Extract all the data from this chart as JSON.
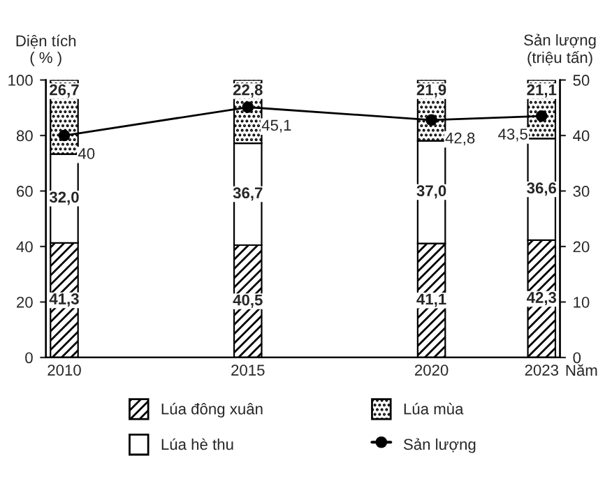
{
  "chart_data": {
    "type": "bar",
    "stacked": true,
    "x": [
      2010,
      2015,
      2020,
      2023
    ],
    "xlim": [
      2009.5,
      2023.5
    ],
    "xticks": [
      2010,
      2015,
      2020,
      2023
    ],
    "xlabel": "Năm",
    "ylabel": "Diện tích\n( % )",
    "y2label": "Sản lượng\n(triệu tấn)",
    "ylim": [
      0,
      100
    ],
    "yticks": [
      0,
      20,
      40,
      60,
      80,
      100
    ],
    "y2lim": [
      0,
      50
    ],
    "y2ticks": [
      0,
      10,
      20,
      30,
      40,
      50
    ],
    "grid": false,
    "legend": "bottom",
    "series": [
      {
        "name": "Lúa đông xuân",
        "color": "#000000",
        "values": [
          41.3,
          40.5,
          41.1,
          42.3
        ],
        "value_labels": [
          "41,3",
          "40,5",
          "41,1",
          "42,3"
        ]
      },
      {
        "name": "Lúa hè thu",
        "color": "#ffffff",
        "values": [
          32.0,
          36.7,
          37.0,
          36.6
        ],
        "value_labels": [
          "32,0",
          "36,7",
          "37,0",
          "36,6"
        ]
      },
      {
        "name": "Lúa mùa",
        "color": "#000000",
        "values": [
          26.7,
          22.8,
          21.9,
          21.1
        ],
        "value_labels": [
          "26,7",
          "22,8",
          "21,9",
          "21,1"
        ]
      },
      {
        "name": "Sản lượng",
        "type": "line",
        "axis": "y2",
        "color": "#000000",
        "marker": "circle",
        "values": [
          40,
          45.1,
          42.8,
          43.5
        ],
        "value_labels": [
          "40",
          "45,1",
          "42,8",
          "43,5"
        ]
      }
    ]
  }
}
